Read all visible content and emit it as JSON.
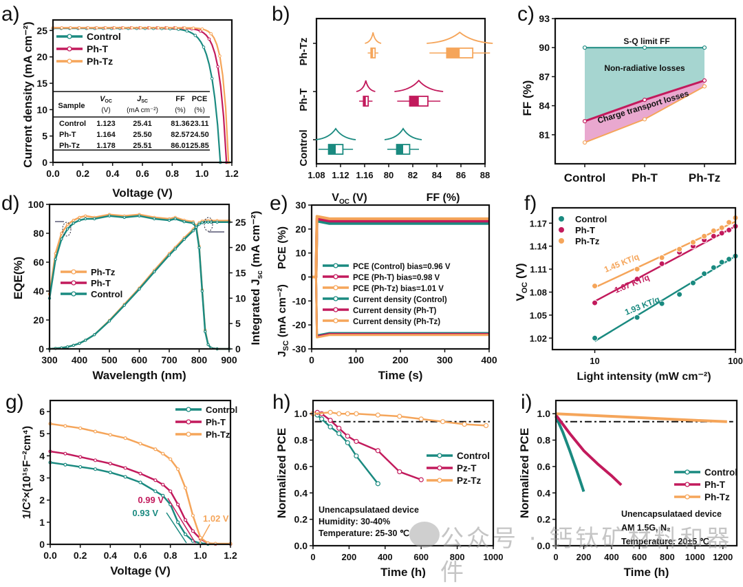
{
  "colors": {
    "control": "#1a8a80",
    "pht": "#c21a5c",
    "phtz": "#f5a55a",
    "axis": "#111111"
  },
  "watermark": "公众号 · 钙钛矿材料和器件",
  "chart_data": [
    {
      "id": "a",
      "panel_label": "a)",
      "type": "line",
      "xlabel": "Voltage (V)",
      "ylabel": "Current density (mA cm⁻²)",
      "xlim": [
        0,
        1.2
      ],
      "ylim": [
        0,
        27
      ],
      "xticks": [
        "0.0",
        "0.2",
        "0.4",
        "0.6",
        "0.8",
        "1.0",
        "1.2"
      ],
      "yticks": [
        "0",
        "5",
        "10",
        "15",
        "20",
        "25"
      ],
      "legend": [
        "Control",
        "Ph-T",
        "Ph-Tz"
      ],
      "legend_position": "top-left",
      "series": [
        {
          "name": "Control",
          "color": "control",
          "jsc": 25.41,
          "voc": 1.123,
          "ff": 81.36
        },
        {
          "name": "Ph-T",
          "color": "pht",
          "jsc": 25.5,
          "voc": 1.164,
          "ff": 82.57
        },
        {
          "name": "Ph-Tz",
          "color": "phtz",
          "jsc": 25.51,
          "voc": 1.178,
          "ff": 86.01
        }
      ],
      "table": {
        "headers": [
          "Sample",
          "V_OC (V)",
          "J_SC (mA cm⁻²)",
          "FF (%)",
          "PCE (%)"
        ],
        "header_top": [
          "Sample",
          "V",
          "J",
          "FF",
          "PCE"
        ],
        "header_sub": [
          "",
          "OC",
          "SC",
          "",
          ""
        ],
        "header_unit": [
          "",
          "(V)",
          "(mA cm⁻²)",
          "(%)",
          "(%)"
        ],
        "rows": [
          [
            "Control",
            "1.123",
            "25.41",
            "81.36",
            "23.11"
          ],
          [
            "Ph-T",
            "1.164",
            "25.50",
            "82.57",
            "24.50"
          ],
          [
            "Ph-Tz",
            "1.178",
            "25.51",
            "86.01",
            "25.85"
          ]
        ]
      }
    },
    {
      "id": "b",
      "panel_label": "b)",
      "type": "scatter",
      "xlabel_left": "V_OC (V)",
      "xlabel_right": "FF (%)",
      "xticks_left": [
        "1.08",
        "1.12",
        "1.16"
      ],
      "xticks_right": [
        "80",
        "82",
        "84",
        "86",
        "88"
      ],
      "categories": [
        "Control",
        "Ph-T",
        "Ph-Tz"
      ],
      "voc_mean": [
        1.112,
        1.162,
        1.174
      ],
      "voc_spread": [
        0.012,
        0.004,
        0.003
      ],
      "ff_mean": [
        81.2,
        82.5,
        85.9
      ],
      "ff_spread": [
        0.5,
        0.7,
        1.0
      ]
    },
    {
      "id": "c",
      "panel_label": "c)",
      "type": "area",
      "ylabel": "FF (%)",
      "ylim": [
        78,
        93
      ],
      "yticks": [
        "81",
        "84",
        "87",
        "90",
        "93"
      ],
      "categories": [
        "Control",
        "Ph-T",
        "Ph-Tz"
      ],
      "series": [
        {
          "name": "S-Q limit FF",
          "values": [
            90.0,
            90.0,
            90.0
          ],
          "color": "control"
        },
        {
          "name": "Ph-T",
          "values": [
            82.4,
            84.6,
            86.6
          ],
          "color": "pht"
        },
        {
          "name": "Ph-Tz",
          "values": [
            80.2,
            82.6,
            86.0
          ],
          "color": "phtz"
        }
      ],
      "annotations": [
        "S-Q limit FF",
        "Non-radiative losses",
        "Charge transport losses"
      ]
    },
    {
      "id": "d",
      "panel_label": "d)",
      "type": "line",
      "xlabel": "Wavelength (nm)",
      "ylabel": "EQE(%)",
      "ylabel_right": "Integrated J_sc (mA cm⁻²)",
      "xlim": [
        300,
        900
      ],
      "ylim": [
        0,
        100
      ],
      "ylim_right": [
        0,
        28.5
      ],
      "xticks": [
        "300",
        "400",
        "500",
        "600",
        "700",
        "800",
        "900"
      ],
      "yticks": [
        "0",
        "20",
        "40",
        "60",
        "80",
        "100"
      ],
      "yticks_right": [
        "0",
        "5",
        "10",
        "15",
        "20",
        "25"
      ],
      "legend": [
        "Ph-Tz",
        "Ph-T",
        "Control"
      ],
      "legend_position": "middle-left",
      "eqe_x": [
        300,
        320,
        340,
        360,
        380,
        400,
        420,
        450,
        500,
        550,
        600,
        650,
        700,
        720,
        750,
        780,
        790,
        800,
        810,
        820,
        830,
        840,
        860,
        900
      ],
      "eqe_control": [
        35,
        62,
        76,
        83,
        87,
        89,
        90,
        90,
        92,
        91,
        92,
        90,
        89,
        90,
        88,
        87,
        84,
        70,
        40,
        12,
        3,
        0.5,
        0,
        0
      ],
      "eqe_phtz": [
        38,
        66,
        80,
        86,
        89,
        91,
        92,
        91,
        93,
        92,
        93,
        91,
        90,
        91,
        89,
        88,
        85,
        71,
        41,
        13,
        3,
        0.5,
        0,
        0
      ],
      "jsc_control": [
        0,
        0.1,
        0.2,
        0.4,
        0.7,
        1.1,
        1.7,
        2.8,
        5.5,
        8.6,
        11.8,
        15.2,
        18.5,
        19.7,
        21.6,
        23.3,
        24.0,
        24.6,
        24.9,
        25.0,
        25.0,
        25.0,
        25.0,
        25.0
      ],
      "jsc_phtz": [
        0,
        0.1,
        0.2,
        0.4,
        0.7,
        1.1,
        1.7,
        2.8,
        5.6,
        8.8,
        12.0,
        15.5,
        18.8,
        20.0,
        21.9,
        23.6,
        24.3,
        24.9,
        25.2,
        25.3,
        25.3,
        25.3,
        25.3,
        25.3
      ]
    },
    {
      "id": "e",
      "panel_label": "e)",
      "type": "line",
      "xlabel": "Time (s)",
      "ylabel_top": "PCE (%)",
      "ylabel_bottom": "J_SC (mA cm⁻²)",
      "xlim": [
        0,
        400
      ],
      "ylim": [
        -30,
        30
      ],
      "xticks": [
        "0",
        "100",
        "200",
        "300",
        "400"
      ],
      "yticks": [
        "-30",
        "-20",
        "-10",
        "0",
        "10",
        "20",
        "30"
      ],
      "legend": [
        "PCE (Control) bias=0.96 V",
        "PCE (Ph-T) bias=0.98 V",
        "PCE (Ph-Tz) bias=1.01 V",
        "Current density (Control)",
        "Current density (Ph-T)",
        "Current density (Ph-Tz)"
      ],
      "series": [
        {
          "name": "PCE (Control)",
          "steady": 22.3,
          "color": "control"
        },
        {
          "name": "PCE (Ph-T)",
          "steady": 23.3,
          "color": "pht"
        },
        {
          "name": "PCE (Ph-Tz)",
          "steady": 24.3,
          "color": "phtz"
        },
        {
          "name": "Current density (Control)",
          "steady": -23.4,
          "color": "control"
        },
        {
          "name": "Current density (Ph-T)",
          "steady": -23.8,
          "color": "pht"
        },
        {
          "name": "Current density (Ph-Tz)",
          "steady": -24.2,
          "color": "phtz"
        }
      ]
    },
    {
      "id": "f",
      "panel_label": "f)",
      "type": "scatter",
      "xlabel": "Light intensity (mW cm⁻²)",
      "ylabel": "V_OC (V)",
      "xscale": "log",
      "xlim": [
        5,
        100
      ],
      "ylim": [
        1.005,
        1.19
      ],
      "xticks": [
        "10",
        "100"
      ],
      "yticks": [
        "1.02",
        "1.05",
        "1.08",
        "1.11",
        "1.14",
        "1.17"
      ],
      "legend": [
        "Control",
        "Ph-T",
        "Ph-Tz"
      ],
      "legend_position": "top-left",
      "x": [
        10,
        20,
        30,
        40,
        50,
        60,
        70,
        80,
        90,
        100
      ],
      "series": [
        {
          "name": "Control",
          "color": "control",
          "values": [
            1.02,
            1.047,
            1.065,
            1.077,
            1.092,
            1.104,
            1.112,
            1.119,
            1.123,
            1.127
          ],
          "fit": [
            1.016,
            1.127
          ],
          "label": "1.93 KT/q"
        },
        {
          "name": "Ph-T",
          "color": "pht",
          "values": [
            1.066,
            1.097,
            1.117,
            1.132,
            1.14,
            1.148,
            1.153,
            1.157,
            1.161,
            1.166
          ],
          "fit": [
            1.068,
            1.166
          ],
          "label": "1.67 KT/q"
        },
        {
          "name": "Ph-Tz",
          "color": "phtz",
          "values": [
            1.088,
            1.11,
            1.125,
            1.136,
            1.145,
            1.153,
            1.16,
            1.164,
            1.171,
            1.177
          ],
          "fit": [
            1.086,
            1.172
          ],
          "label": "1.45 KT/q"
        }
      ]
    },
    {
      "id": "g",
      "panel_label": "g)",
      "type": "line",
      "xlabel": "Voltage (V)",
      "ylabel": "1/C²×(10¹⁵F⁻²cm⁴)",
      "xlim": [
        0,
        1.2
      ],
      "ylim": [
        0,
        6.5
      ],
      "xticks": [
        "0.0",
        "0.2",
        "0.4",
        "0.6",
        "0.8",
        "1.0",
        "1.2"
      ],
      "yticks": [
        "0",
        "1",
        "2",
        "3",
        "4",
        "5",
        "6"
      ],
      "legend": [
        "Control",
        "Ph-T",
        "Ph-Tz"
      ],
      "legend_position": "top-right",
      "x": [
        0,
        0.1,
        0.2,
        0.3,
        0.4,
        0.5,
        0.6,
        0.7,
        0.75,
        0.8,
        0.85,
        0.9,
        0.95,
        1.0,
        1.05,
        1.1,
        1.2
      ],
      "series": [
        {
          "name": "Control",
          "color": "control",
          "values": [
            3.7,
            3.6,
            3.5,
            3.4,
            3.25,
            3.05,
            2.8,
            2.4,
            2.2,
            1.8,
            1.0,
            0.45,
            0.15,
            0.05,
            0.02,
            0.02,
            0.02
          ],
          "vfb": "0.93 V"
        },
        {
          "name": "Ph-T",
          "color": "pht",
          "values": [
            4.2,
            4.1,
            3.95,
            3.8,
            3.65,
            3.45,
            3.2,
            2.9,
            2.7,
            2.4,
            1.8,
            1.1,
            0.6,
            0.25,
            0.05,
            0.02,
            0.02
          ],
          "vfb": "0.99 V"
        },
        {
          "name": "Ph-Tz",
          "color": "phtz",
          "values": [
            5.45,
            5.35,
            5.25,
            5.1,
            4.95,
            4.8,
            4.55,
            4.3,
            4.1,
            3.85,
            3.4,
            2.55,
            1.3,
            0.3,
            0.05,
            0.03,
            0.03
          ],
          "vfb": "1.02 V"
        }
      ]
    },
    {
      "id": "h",
      "panel_label": "h)",
      "type": "line",
      "xlabel": "Time (h)",
      "ylabel": "Normalized PCE",
      "xlim": [
        0,
        1000
      ],
      "ylim": [
        0,
        1.1
      ],
      "xticks": [
        "0",
        "200",
        "400",
        "600",
        "800",
        "1000"
      ],
      "yticks": [
        "0.0",
        "0.2",
        "0.4",
        "0.6",
        "0.8",
        "1.0"
      ],
      "legend": [
        "Control",
        "Pz-T",
        "Pz-Tz"
      ],
      "legend_position": "middle-right",
      "reference_line": 0.94,
      "annotation": [
        "Unencapsulataed device",
        "Humidity: 30-40%",
        "Temperature: 25-30 ℃"
      ],
      "series": [
        {
          "name": "Control",
          "color": "control",
          "x": [
            0,
            24,
            48,
            96,
            144,
            192,
            240,
            360
          ],
          "values": [
            1.0,
            0.99,
            0.96,
            0.9,
            0.85,
            0.78,
            0.68,
            0.47
          ]
        },
        {
          "name": "Pz-T",
          "color": "pht",
          "x": [
            0,
            24,
            48,
            96,
            144,
            192,
            240,
            360,
            480,
            600
          ],
          "values": [
            1.0,
            1.01,
            1.0,
            0.95,
            0.89,
            0.83,
            0.79,
            0.72,
            0.56,
            0.5
          ]
        },
        {
          "name": "Pz-Tz",
          "color": "phtz",
          "x": [
            0,
            96,
            144,
            192,
            240,
            360,
            480,
            600,
            720,
            840,
            960
          ],
          "values": [
            1.0,
            1.01,
            1.0,
            1.0,
            1.0,
            0.99,
            0.98,
            0.96,
            0.94,
            0.92,
            0.91
          ]
        }
      ]
    },
    {
      "id": "i",
      "panel_label": "i)",
      "type": "line",
      "xlabel": "Time (h)",
      "ylabel": "Normalized PCE",
      "xlim": [
        0,
        1300
      ],
      "ylim": [
        0,
        1.1
      ],
      "xticks": [
        "0",
        "200",
        "400",
        "600",
        "800",
        "1000",
        "1200"
      ],
      "yticks": [
        "0.0",
        "0.2",
        "0.4",
        "0.6",
        "0.8",
        "1.0"
      ],
      "legend": [
        "Control",
        "Ph-T",
        "Ph-Tz"
      ],
      "legend_position": "middle-right",
      "reference_line": 0.94,
      "annotation": [
        "Unencapsulataed device",
        "AM 1.5G,  N₂",
        "Temperature: 20±5 ℃"
      ],
      "series": [
        {
          "name": "Control",
          "color": "control",
          "x": [
            0,
            50,
            100,
            150,
            200
          ],
          "values": [
            0.98,
            0.86,
            0.72,
            0.57,
            0.41
          ]
        },
        {
          "name": "Ph-T",
          "color": "pht",
          "x": [
            0,
            50,
            100,
            200,
            300,
            400,
            470
          ],
          "values": [
            0.99,
            0.92,
            0.85,
            0.72,
            0.62,
            0.53,
            0.46
          ]
        },
        {
          "name": "Ph-Tz",
          "color": "phtz",
          "x": [
            0,
            200,
            400,
            600,
            800,
            1000,
            1230
          ],
          "values": [
            1.0,
            0.99,
            0.98,
            0.97,
            0.96,
            0.95,
            0.94
          ]
        }
      ]
    }
  ]
}
